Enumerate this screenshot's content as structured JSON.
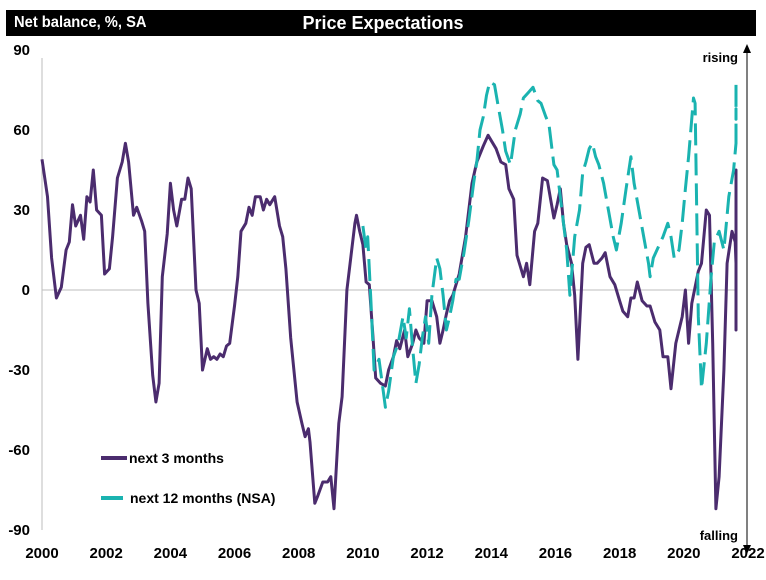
{
  "header": {
    "ylabel": "Net balance, %, SA",
    "title": "Price Expectations"
  },
  "annotations": {
    "top": "rising",
    "bottom": "falling"
  },
  "chart_data": {
    "type": "line",
    "title": "Price Expectations",
    "xlabel": "",
    "ylabel": "Net balance, %, SA",
    "xlim": [
      2000,
      2022
    ],
    "ylim": [
      -90,
      90
    ],
    "grid": false,
    "zero_line": true,
    "x_ticks": [
      "2000",
      "2002",
      "2004",
      "2006",
      "2008",
      "2010",
      "2012",
      "2014",
      "2016",
      "2018",
      "2020",
      "2022"
    ],
    "y_ticks": [
      "90",
      "60",
      "30",
      "0",
      "-30",
      "-60",
      "-90"
    ],
    "y_tick_values": [
      90,
      60,
      30,
      0,
      -30,
      -60,
      -90
    ],
    "x_tick_values": [
      2000,
      2002,
      2004,
      2006,
      2008,
      2010,
      2012,
      2014,
      2016,
      2018,
      2020,
      2022
    ],
    "legend_position": "bottom-left",
    "series": [
      {
        "name": "next 3 months",
        "color": "#4b2c6e",
        "style": "solid",
        "points": [
          [
            2000.0,
            49
          ],
          [
            2000.17,
            35
          ],
          [
            2000.3,
            12
          ],
          [
            2000.45,
            -3
          ],
          [
            2000.6,
            1
          ],
          [
            2000.75,
            15
          ],
          [
            2000.85,
            18
          ],
          [
            2000.95,
            32
          ],
          [
            2001.05,
            24
          ],
          [
            2001.2,
            28
          ],
          [
            2001.3,
            19
          ],
          [
            2001.4,
            35
          ],
          [
            2001.5,
            33
          ],
          [
            2001.6,
            45
          ],
          [
            2001.7,
            30
          ],
          [
            2001.85,
            28
          ],
          [
            2001.95,
            6
          ],
          [
            2002.1,
            8
          ],
          [
            2002.2,
            20
          ],
          [
            2002.35,
            42
          ],
          [
            2002.5,
            48
          ],
          [
            2002.6,
            55
          ],
          [
            2002.7,
            48
          ],
          [
            2002.85,
            28
          ],
          [
            2002.95,
            31
          ],
          [
            2003.1,
            26
          ],
          [
            2003.2,
            22
          ],
          [
            2003.3,
            -5
          ],
          [
            2003.45,
            -32
          ],
          [
            2003.55,
            -42
          ],
          [
            2003.65,
            -35
          ],
          [
            2003.75,
            5
          ],
          [
            2003.9,
            21
          ],
          [
            2004.0,
            40
          ],
          [
            2004.1,
            30
          ],
          [
            2004.2,
            24
          ],
          [
            2004.35,
            34
          ],
          [
            2004.45,
            34
          ],
          [
            2004.55,
            42
          ],
          [
            2004.65,
            38
          ],
          [
            2004.8,
            0
          ],
          [
            2004.9,
            -5
          ],
          [
            2005.0,
            -30
          ],
          [
            2005.15,
            -22
          ],
          [
            2005.25,
            -26
          ],
          [
            2005.35,
            -25
          ],
          [
            2005.45,
            -26
          ],
          [
            2005.55,
            -24
          ],
          [
            2005.65,
            -25
          ],
          [
            2005.75,
            -21
          ],
          [
            2005.85,
            -20
          ],
          [
            2006.0,
            -6
          ],
          [
            2006.1,
            5
          ],
          [
            2006.2,
            22
          ],
          [
            2006.35,
            25
          ],
          [
            2006.45,
            31
          ],
          [
            2006.55,
            28
          ],
          [
            2006.65,
            35
          ],
          [
            2006.8,
            35
          ],
          [
            2006.9,
            30
          ],
          [
            2007.0,
            34
          ],
          [
            2007.1,
            32
          ],
          [
            2007.25,
            35
          ],
          [
            2007.4,
            24
          ],
          [
            2007.5,
            20
          ],
          [
            2007.6,
            8
          ],
          [
            2007.75,
            -18
          ],
          [
            2007.85,
            -30
          ],
          [
            2007.95,
            -42
          ],
          [
            2008.1,
            -50
          ],
          [
            2008.2,
            -55
          ],
          [
            2008.3,
            -52
          ],
          [
            2008.35,
            -57
          ],
          [
            2008.5,
            -80
          ],
          [
            2008.6,
            -77
          ],
          [
            2008.75,
            -72
          ],
          [
            2008.9,
            -72
          ],
          [
            2009.0,
            -70
          ],
          [
            2009.1,
            -82
          ],
          [
            2009.25,
            -50
          ],
          [
            2009.35,
            -40
          ],
          [
            2009.5,
            0
          ],
          [
            2009.6,
            10
          ],
          [
            2009.75,
            25
          ],
          [
            2009.8,
            28
          ],
          [
            2009.9,
            22
          ],
          [
            2010.0,
            17
          ],
          [
            2010.1,
            3
          ],
          [
            2010.2,
            2
          ],
          [
            2010.3,
            -15
          ],
          [
            2010.4,
            -33
          ],
          [
            2010.55,
            -35
          ],
          [
            2010.7,
            -36
          ],
          [
            2010.8,
            -30
          ],
          [
            2010.95,
            -25
          ],
          [
            2011.05,
            -19
          ],
          [
            2011.15,
            -22
          ],
          [
            2011.3,
            -15
          ],
          [
            2011.4,
            -25
          ],
          [
            2011.55,
            -20
          ],
          [
            2011.65,
            -15
          ],
          [
            2011.75,
            -18
          ],
          [
            2011.9,
            -20
          ],
          [
            2012.0,
            -4
          ],
          [
            2012.15,
            -4
          ],
          [
            2012.3,
            -10
          ],
          [
            2012.4,
            -20
          ],
          [
            2012.5,
            -15
          ],
          [
            2012.6,
            -9
          ],
          [
            2012.7,
            -4
          ],
          [
            2012.8,
            -2
          ],
          [
            2013.0,
            6
          ],
          [
            2013.2,
            20
          ],
          [
            2013.4,
            40
          ],
          [
            2013.55,
            48
          ],
          [
            2013.75,
            54
          ],
          [
            2013.9,
            58
          ],
          [
            2014.0,
            56
          ],
          [
            2014.15,
            53
          ],
          [
            2014.3,
            48
          ],
          [
            2014.45,
            47
          ],
          [
            2014.55,
            38
          ],
          [
            2014.7,
            34
          ],
          [
            2014.8,
            13
          ],
          [
            2014.9,
            9
          ],
          [
            2015.0,
            5
          ],
          [
            2015.1,
            10
          ],
          [
            2015.2,
            2
          ],
          [
            2015.35,
            22
          ],
          [
            2015.45,
            25
          ],
          [
            2015.6,
            42
          ],
          [
            2015.75,
            41
          ],
          [
            2015.85,
            34
          ],
          [
            2015.95,
            27
          ],
          [
            2016.05,
            32
          ],
          [
            2016.15,
            38
          ],
          [
            2016.25,
            25
          ],
          [
            2016.35,
            17
          ],
          [
            2016.5,
            10
          ],
          [
            2016.6,
            -2
          ],
          [
            2016.7,
            -26
          ],
          [
            2016.85,
            10
          ],
          [
            2016.95,
            16
          ],
          [
            2017.05,
            17
          ],
          [
            2017.2,
            10
          ],
          [
            2017.3,
            10
          ],
          [
            2017.45,
            12
          ],
          [
            2017.55,
            14
          ],
          [
            2017.7,
            5
          ],
          [
            2017.85,
            2
          ],
          [
            2018.0,
            -4
          ],
          [
            2018.1,
            -8
          ],
          [
            2018.25,
            -10
          ],
          [
            2018.35,
            -3
          ],
          [
            2018.45,
            -3
          ],
          [
            2018.55,
            3
          ],
          [
            2018.7,
            -4
          ],
          [
            2018.85,
            -6
          ],
          [
            2018.95,
            -6
          ],
          [
            2019.1,
            -12
          ],
          [
            2019.25,
            -15
          ],
          [
            2019.35,
            -25
          ],
          [
            2019.5,
            -25
          ],
          [
            2019.6,
            -37
          ],
          [
            2019.75,
            -20
          ],
          [
            2019.95,
            -10
          ],
          [
            2020.05,
            0
          ],
          [
            2020.15,
            -20
          ],
          [
            2020.25,
            -5
          ],
          [
            2020.45,
            7
          ],
          [
            2020.55,
            10
          ],
          [
            2020.7,
            30
          ],
          [
            2020.8,
            28
          ],
          [
            2020.9,
            -20
          ],
          [
            2021.0,
            -82
          ],
          [
            2021.1,
            -70
          ],
          [
            2021.25,
            -30
          ],
          [
            2021.35,
            10
          ],
          [
            2021.5,
            22
          ],
          [
            2021.6,
            18
          ],
          [
            2021.7,
            10
          ],
          [
            2021.8,
            -15
          ],
          [
            2021.9,
            15
          ],
          [
            2022.0,
            36
          ],
          [
            2022.1,
            45
          ],
          [
            2022.25,
            38
          ],
          [
            2022.35,
            28
          ],
          [
            2022.45,
            28
          ],
          [
            2022.55,
            22
          ],
          [
            2022.65,
            22
          ],
          [
            2022.75,
            25
          ],
          [
            2022.85,
            22
          ],
          [
            2022.95,
            24
          ],
          [
            2023.0,
            35
          ]
        ]
      },
      {
        "name": "next 12 months (NSA)",
        "color": "#1ab3b0",
        "style": "dashed",
        "points": [
          [
            2010.0,
            24
          ],
          [
            2010.1,
            15
          ],
          [
            2010.15,
            20
          ],
          [
            2010.25,
            -4
          ],
          [
            2010.35,
            -30
          ],
          [
            2010.5,
            -26
          ],
          [
            2010.6,
            -35
          ],
          [
            2010.7,
            -44
          ],
          [
            2010.8,
            -38
          ],
          [
            2010.95,
            -25
          ],
          [
            2011.1,
            -20
          ],
          [
            2011.25,
            -10
          ],
          [
            2011.35,
            -18
          ],
          [
            2011.45,
            -7
          ],
          [
            2011.55,
            -22
          ],
          [
            2011.65,
            -35
          ],
          [
            2011.75,
            -28
          ],
          [
            2011.85,
            -18
          ],
          [
            2011.95,
            -10
          ],
          [
            2012.05,
            -20
          ],
          [
            2012.15,
            -2
          ],
          [
            2012.3,
            12
          ],
          [
            2012.4,
            8
          ],
          [
            2012.5,
            -2
          ],
          [
            2012.6,
            -15
          ],
          [
            2012.7,
            -10
          ],
          [
            2012.8,
            -4
          ],
          [
            2012.9,
            4
          ],
          [
            2013.0,
            4
          ],
          [
            2013.15,
            14
          ],
          [
            2013.3,
            26
          ],
          [
            2013.45,
            40
          ],
          [
            2013.55,
            48
          ],
          [
            2013.65,
            60
          ],
          [
            2013.75,
            65
          ],
          [
            2013.85,
            73
          ],
          [
            2013.95,
            78
          ],
          [
            2014.1,
            77
          ],
          [
            2014.2,
            70
          ],
          [
            2014.35,
            60
          ],
          [
            2014.45,
            52
          ],
          [
            2014.6,
            47
          ],
          [
            2014.75,
            60
          ],
          [
            2014.9,
            66
          ],
          [
            2015.0,
            72
          ],
          [
            2015.15,
            74
          ],
          [
            2015.3,
            76
          ],
          [
            2015.45,
            71
          ],
          [
            2015.55,
            70
          ],
          [
            2015.7,
            65
          ],
          [
            2015.8,
            62
          ],
          [
            2015.95,
            47
          ],
          [
            2016.05,
            45
          ],
          [
            2016.15,
            35
          ],
          [
            2016.25,
            25
          ],
          [
            2016.35,
            15
          ],
          [
            2016.45,
            -2
          ],
          [
            2016.6,
            20
          ],
          [
            2016.75,
            30
          ],
          [
            2016.85,
            44
          ],
          [
            2016.95,
            48
          ],
          [
            2017.05,
            53
          ],
          [
            2017.15,
            55
          ],
          [
            2017.25,
            50
          ],
          [
            2017.35,
            47
          ],
          [
            2017.5,
            40
          ],
          [
            2017.65,
            30
          ],
          [
            2017.8,
            20
          ],
          [
            2017.9,
            15
          ],
          [
            2018.05,
            25
          ],
          [
            2018.2,
            38
          ],
          [
            2018.35,
            50
          ],
          [
            2018.45,
            40
          ],
          [
            2018.6,
            30
          ],
          [
            2018.75,
            20
          ],
          [
            2018.9,
            10
          ],
          [
            2018.95,
            5
          ],
          [
            2019.05,
            12
          ],
          [
            2019.2,
            16
          ],
          [
            2019.35,
            20
          ],
          [
            2019.5,
            25
          ],
          [
            2019.6,
            20
          ],
          [
            2019.7,
            12
          ],
          [
            2019.85,
            15
          ],
          [
            2019.95,
            25
          ],
          [
            2020.05,
            38
          ],
          [
            2020.15,
            50
          ],
          [
            2020.3,
            72
          ],
          [
            2020.35,
            70
          ],
          [
            2020.45,
            -10
          ],
          [
            2020.55,
            -37
          ],
          [
            2020.7,
            -20
          ],
          [
            2020.85,
            5
          ],
          [
            2020.95,
            18
          ],
          [
            2021.1,
            22
          ],
          [
            2021.25,
            15
          ],
          [
            2021.4,
            35
          ],
          [
            2021.55,
            45
          ],
          [
            2021.65,
            55
          ],
          [
            2021.75,
            62
          ],
          [
            2021.85,
            58
          ],
          [
            2021.95,
            68
          ],
          [
            2022.05,
            64
          ],
          [
            2022.15,
            66
          ],
          [
            2022.3,
            67
          ],
          [
            2022.45,
            70
          ],
          [
            2022.55,
            72
          ],
          [
            2022.7,
            75
          ],
          [
            2023.0,
            77
          ]
        ]
      }
    ]
  }
}
